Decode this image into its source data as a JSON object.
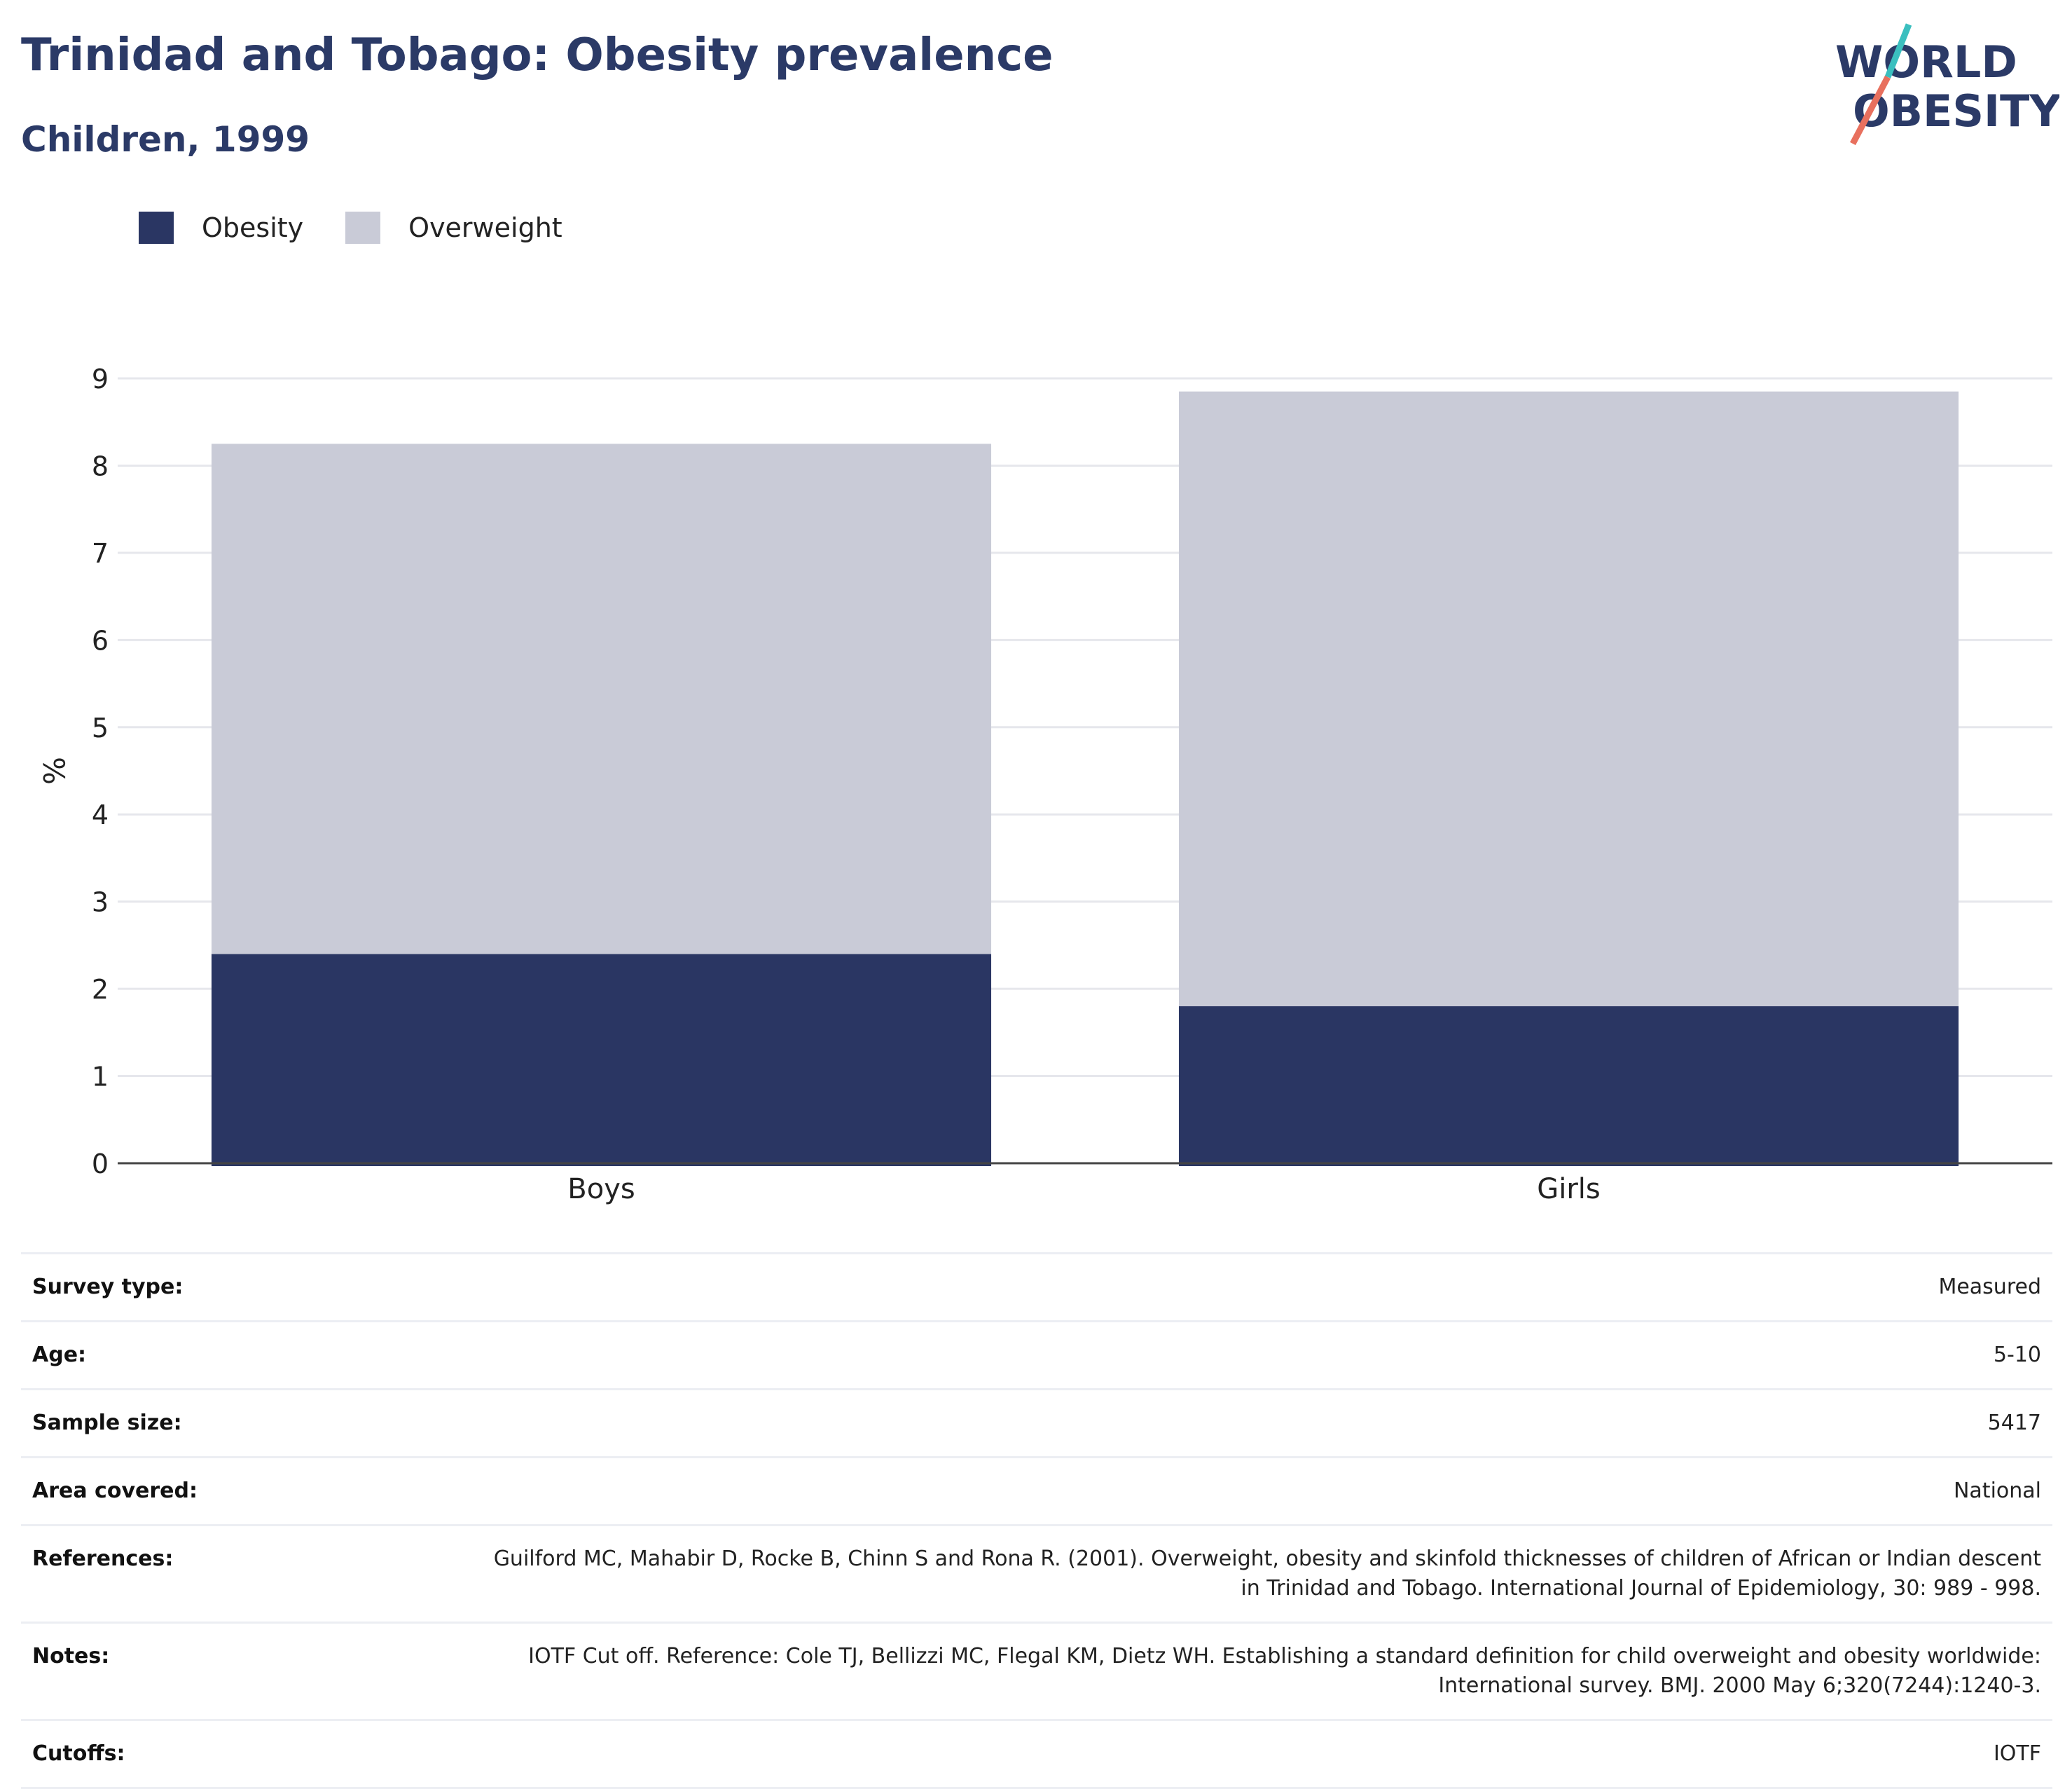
{
  "header": {
    "title": "Trinidad and Tobago: Obesity prevalence",
    "subtitle": "Children, 1999"
  },
  "logo": {
    "line1": "WORLD",
    "line2": "OBESITY",
    "accent_teal": "#3bbfbf",
    "accent_coral": "#e8705e",
    "text_color": "#2b3a67"
  },
  "legend": [
    {
      "label": "Obesity",
      "color": "#2a3663"
    },
    {
      "label": "Overweight",
      "color": "#c9cbd7"
    }
  ],
  "chart_data": {
    "type": "bar",
    "stacked": true,
    "categories": [
      "Boys",
      "Girls"
    ],
    "series": [
      {
        "name": "Obesity",
        "values": [
          2.4,
          1.8
        ],
        "color": "#2a3663"
      },
      {
        "name": "Overweight",
        "values": [
          5.85,
          7.05
        ],
        "color": "#c9cbd7"
      }
    ],
    "ylabel": "%",
    "ylim": [
      0,
      9
    ],
    "yticks": [
      0,
      1,
      2,
      3,
      4,
      5,
      6,
      7,
      8,
      9
    ],
    "grid": true,
    "legend_position": "top-left"
  },
  "info": [
    {
      "key": "Survey type:",
      "value": "Measured"
    },
    {
      "key": "Age:",
      "value": "5-10"
    },
    {
      "key": "Sample size:",
      "value": "5417"
    },
    {
      "key": "Area covered:",
      "value": "National"
    },
    {
      "key": "References:",
      "value": "Guilford MC, Mahabir D, Rocke B, Chinn S and Rona R. (2001). Overweight, obesity and skinfold thicknesses of children of African or Indian descent in Trinidad and Tobago. International Journal of Epidemiology, 30: 989 - 998."
    },
    {
      "key": "Notes:",
      "value": "IOTF Cut off. Reference: Cole TJ, Bellizzi MC, Flegal KM, Dietz WH. Establishing a standard definition for child overweight and obesity worldwide: International survey. BMJ. 2000 May 6;320(7244):1240-3."
    },
    {
      "key": "Cutoffs:",
      "value": "IOTF"
    }
  ]
}
